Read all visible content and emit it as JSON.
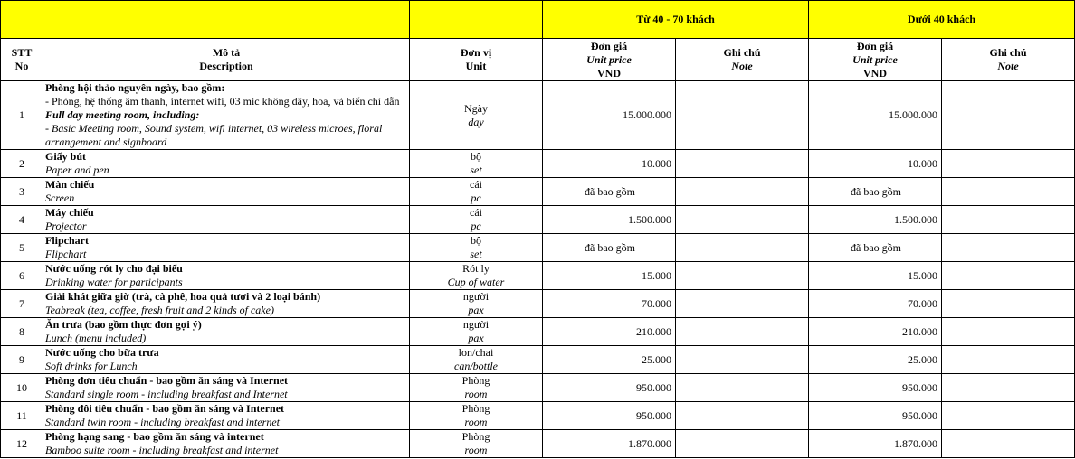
{
  "header": {
    "group_a": "Từ 40 - 70 khách",
    "group_b": "Dưới  40 khách",
    "stt": [
      "STT",
      "No"
    ],
    "desc": [
      "Mô tả",
      "Description"
    ],
    "unit": [
      "Đơn vị",
      "Unit"
    ],
    "price": [
      "Đơn giá",
      "Unit price",
      "VND"
    ],
    "note": [
      "Ghi chú",
      "Note"
    ]
  },
  "rows": [
    {
      "no": "1",
      "title": "Phòng hội thảo nguyên ngày, bao gồm:",
      "line": "- Phòng, hệ thống âm thanh, internet wifi, 03 mic không dây, hoa, và biển chỉ dẫn",
      "title_en": "Full day meeting room, including:",
      "line_en": "- Basic Meeting room, Sound system, wifi internet, 03 wireless microes, floral arrangement and signboard",
      "unit": "Ngày",
      "unit_en": "day",
      "price_a": "15.000.000",
      "price_b": "15.000.000"
    },
    {
      "no": "2",
      "title": "Giấy bút",
      "title_en": "Paper and pen",
      "unit": "bộ",
      "unit_en": "set",
      "price_a": "10.000",
      "price_b": "10.000"
    },
    {
      "no": "3",
      "title": "Màn chiếu",
      "title_en": "Screen",
      "unit": "cái",
      "unit_en": "pc",
      "price_a": "đã bao gồm",
      "price_b": "đã bao gồm",
      "included": true
    },
    {
      "no": "4",
      "title": "Máy chiếu",
      "title_en": "Projector",
      "unit": "cái",
      "unit_en": "pc",
      "price_a": "1.500.000",
      "price_b": "1.500.000"
    },
    {
      "no": "5",
      "title": "Flipchart",
      "title_en": "Flipchart",
      "unit": "bộ",
      "unit_en": "set",
      "price_a": "đã bao gồm",
      "price_b": "đã bao gồm",
      "included": true
    },
    {
      "no": "6",
      "title": "Nước uống rót ly cho đại biểu",
      "title_en": "Drinking water for participants",
      "unit": "Rót ly",
      "unit_en": "Cup of water",
      "price_a": "15.000",
      "price_b": "15.000"
    },
    {
      "no": "7",
      "title": "Giải khát giữa giờ (trà, cà phê, hoa quả tươi và 2 loại bánh)",
      "title_en": "Teabreak (tea, coffee, fresh fruit and 2 kinds of cake)",
      "unit": "người",
      "unit_en": "pax",
      "price_a": "70.000",
      "price_b": "70.000"
    },
    {
      "no": "8",
      "title": "Ăn trưa (bao gồm thực đơn gợi ý)",
      "title_en": "Lunch (menu included)",
      "unit": "người",
      "unit_en": "pax",
      "price_a": "210.000",
      "price_b": "210.000"
    },
    {
      "no": "9",
      "title": "Nước uống cho bữa trưa",
      "title_en": "Soft drinks for Lunch",
      "unit": "lon/chai",
      "unit_en": "can/bottle",
      "price_a": "25.000",
      "price_b": "25.000"
    },
    {
      "no": "10",
      "title": "Phòng đơn tiêu chuẩn - bao gồm ăn sáng và Internet",
      "title_en": "Standard single room - including breakfast and Internet",
      "unit": "Phòng",
      "unit_en": "room",
      "price_a": "950.000",
      "price_b": "950.000"
    },
    {
      "no": "11",
      "title": "Phòng đôi tiêu chuẩn - bao gồm ăn sáng và Internet",
      "title_en": "Standard twin room - including breakfast and internet",
      "unit": "Phòng",
      "unit_en": "room",
      "price_a": "950.000",
      "price_b": "950.000"
    },
    {
      "no": "12",
      "title": "Phòng hạng sang - bao gồm ăn sáng và internet",
      "title_en": "Bamboo suite room - including breakfast and internet",
      "unit": "Phòng",
      "unit_en": "room",
      "price_a": "1.870.000",
      "price_b": "1.870.000"
    }
  ],
  "colors": {
    "header_yellow": "#ffff00",
    "border": "#000000"
  }
}
